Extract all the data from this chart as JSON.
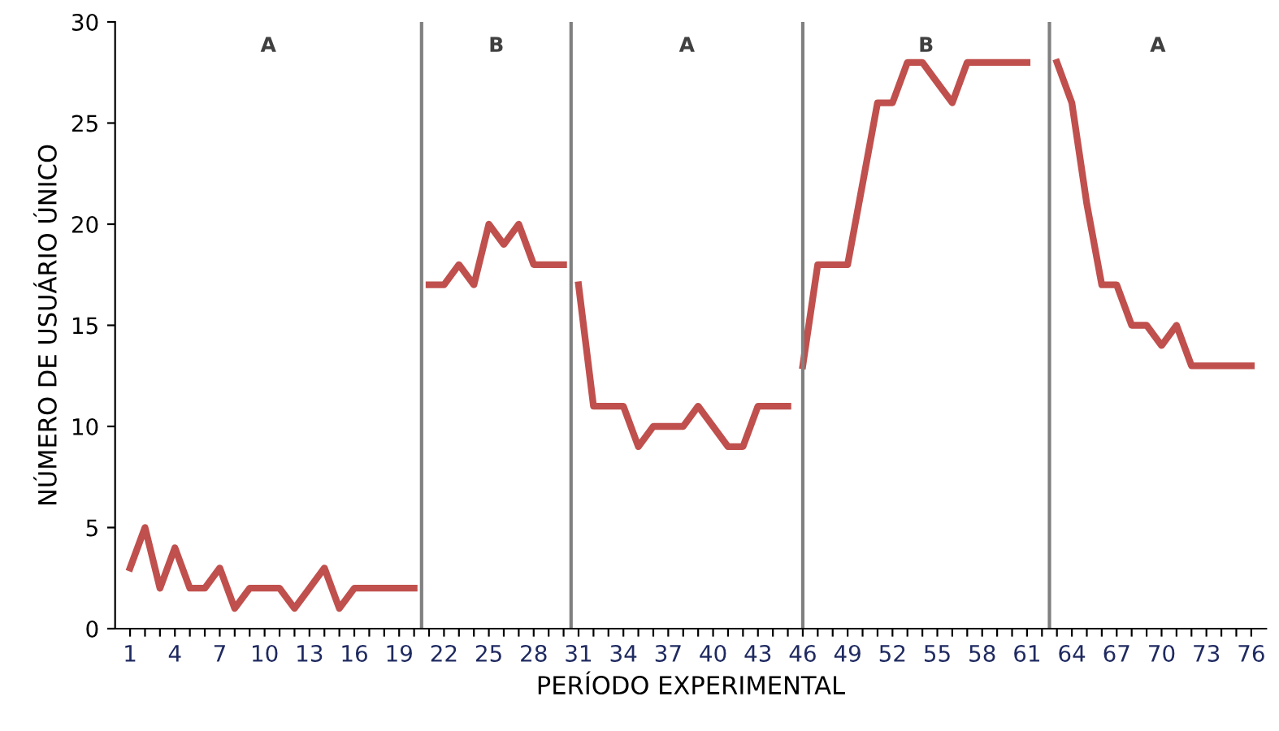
{
  "chart_data": {
    "type": "line",
    "xlabel": "PERÍODO EXPERIMENTAL",
    "ylabel": "NÚMERO DE USUÁRIO ÚNICO",
    "series": [
      {
        "color": "#c0504d",
        "x": [
          1,
          2,
          3,
          4,
          5,
          6,
          7,
          8,
          9,
          10,
          11,
          12,
          13,
          14,
          15,
          16,
          17,
          18,
          19,
          20
        ],
        "values": [
          3,
          5,
          2,
          4,
          2,
          2,
          3,
          1,
          2,
          2,
          2,
          1,
          2,
          3,
          1,
          2,
          2,
          2,
          2,
          2
        ]
      },
      {
        "color": "#c0504d",
        "x": [
          21,
          22,
          23,
          24,
          25,
          26,
          27,
          28,
          29,
          30
        ],
        "values": [
          17,
          17,
          18,
          17,
          20,
          19,
          20,
          18,
          18,
          18
        ]
      },
      {
        "color": "#c0504d",
        "x": [
          31,
          32,
          33,
          34,
          35,
          36,
          37,
          38,
          39,
          40,
          41,
          42,
          43,
          44,
          45
        ],
        "values": [
          17,
          11,
          11,
          11,
          9,
          10,
          10,
          10,
          11,
          10,
          9,
          9,
          11,
          11,
          11
        ]
      },
      {
        "color": "#c0504d",
        "x": [
          46,
          47,
          48,
          49,
          50,
          51,
          52,
          53,
          54,
          55,
          56,
          57,
          58,
          59,
          60,
          61
        ],
        "values": [
          13,
          18,
          18,
          18,
          22,
          26,
          26,
          28,
          28,
          27,
          26,
          28,
          28,
          28,
          28,
          28
        ]
      },
      {
        "color": "#c0504d",
        "x": [
          63,
          64,
          65,
          66,
          67,
          68,
          69,
          70,
          71,
          72,
          73,
          74,
          75,
          76
        ],
        "values": [
          28,
          26,
          21,
          17,
          17,
          15,
          15,
          14,
          15,
          13,
          13,
          13,
          13,
          13
        ]
      }
    ],
    "xlim": [
      0,
      77
    ],
    "ylim": [
      0,
      30
    ],
    "xticks": [
      1,
      {
        "value": 2,
        "label": null
      },
      {
        "value": 3,
        "label": null
      },
      4,
      {
        "value": 5,
        "label": null
      },
      {
        "value": 6,
        "label": null
      },
      7,
      {
        "value": 8,
        "label": null
      },
      {
        "value": 9,
        "label": null
      },
      10,
      {
        "value": 11,
        "label": null
      },
      {
        "value": 12,
        "label": null
      },
      13,
      {
        "value": 14,
        "label": null
      },
      {
        "value": 15,
        "label": null
      },
      16,
      {
        "value": 17,
        "label": null
      },
      {
        "value": 18,
        "label": null
      },
      19,
      {
        "value": 20,
        "label": null
      },
      {
        "value": 21,
        "label": null
      },
      22,
      {
        "value": 23,
        "label": null
      },
      {
        "value": 24,
        "label": null
      },
      25,
      {
        "value": 26,
        "label": null
      },
      {
        "value": 27,
        "label": null
      },
      28,
      {
        "value": 29,
        "label": null
      },
      {
        "value": 30,
        "label": null
      },
      31,
      {
        "value": 32,
        "label": null
      },
      {
        "value": 33,
        "label": null
      },
      34,
      {
        "value": 35,
        "label": null
      },
      {
        "value": 36,
        "label": null
      },
      37,
      {
        "value": 38,
        "label": null
      },
      {
        "value": 39,
        "label": null
      },
      40,
      {
        "value": 41,
        "label": null
      },
      {
        "value": 42,
        "label": null
      },
      43,
      {
        "value": 44,
        "label": null
      },
      {
        "value": 45,
        "label": null
      },
      46,
      {
        "value": 47,
        "label": null
      },
      {
        "value": 48,
        "label": null
      },
      49,
      {
        "value": 50,
        "label": null
      },
      {
        "value": 51,
        "label": null
      },
      52,
      {
        "value": 53,
        "label": null
      },
      {
        "value": 54,
        "label": null
      },
      55,
      {
        "value": 56,
        "label": null
      },
      {
        "value": 57,
        "label": null
      },
      58,
      {
        "value": 59,
        "label": null
      },
      {
        "value": 60,
        "label": null
      },
      61,
      {
        "value": 62,
        "label": null
      },
      {
        "value": 63,
        "label": null
      },
      64,
      {
        "value": 65,
        "label": null
      },
      {
        "value": 66,
        "label": null
      },
      67,
      {
        "value": 68,
        "label": null
      },
      {
        "value": 69,
        "label": null
      },
      70,
      {
        "value": 71,
        "label": null
      },
      {
        "value": 72,
        "label": null
      },
      73,
      {
        "value": 74,
        "label": null
      },
      {
        "value": 75,
        "label": null
      },
      76
    ],
    "yticks": [
      0,
      5,
      10,
      15,
      20,
      25,
      30
    ],
    "ref_lines": [
      {
        "axis": "x",
        "value": 20.5,
        "color": "#808080"
      },
      {
        "axis": "x",
        "value": 30.5,
        "color": "#808080"
      },
      {
        "axis": "x",
        "value": 46,
        "color": "#808080"
      },
      {
        "axis": "x",
        "value": 62.5,
        "color": "#808080"
      }
    ],
    "annotations": [
      "A",
      "B",
      "A",
      "B",
      "A"
    ],
    "grid": false,
    "legend": false,
    "marker": "none",
    "line_style": "solid"
  }
}
